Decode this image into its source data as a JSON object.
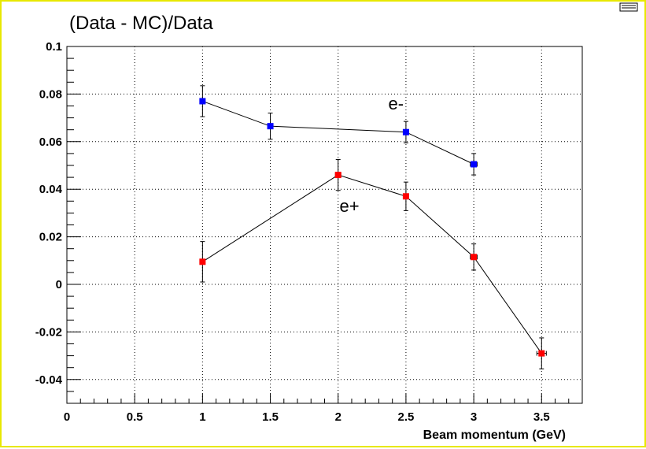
{
  "chart_data": {
    "type": "scatter",
    "title": "(Data - MC)/Data",
    "xlabel": "Beam momentum (GeV)",
    "ylabel": "",
    "xlim": [
      0,
      3.8
    ],
    "ylim": [
      -0.05,
      0.1
    ],
    "x_ticks": [
      0,
      0.5,
      1,
      1.5,
      2,
      2.5,
      3,
      3.5
    ],
    "x_tick_labels": [
      "0",
      "0.5",
      "1",
      "1.5",
      "2",
      "2.5",
      "3",
      "3.5"
    ],
    "y_ticks": [
      -0.04,
      -0.02,
      0,
      0.02,
      0.04,
      0.06,
      0.08,
      0.1
    ],
    "y_tick_labels": [
      "-0.04",
      "-0.02",
      "0",
      "0.02",
      "0.04",
      "0.06",
      "0.08",
      "0.1"
    ],
    "grid": true,
    "series": [
      {
        "color": "#0000ff",
        "points": [
          {
            "x": 1.0,
            "y": 0.077,
            "yerr": 0.0065,
            "xerr": 0.0
          },
          {
            "x": 1.5,
            "y": 0.0665,
            "yerr": 0.0055,
            "xerr": 0.0
          },
          {
            "x": 2.5,
            "y": 0.064,
            "yerr": 0.0045,
            "xerr": 0.015
          },
          {
            "x": 3.0,
            "y": 0.0505,
            "yerr": 0.0045,
            "xerr": 0.025
          }
        ]
      },
      {
        "color": "#ff0000",
        "points": [
          {
            "x": 1.0,
            "y": 0.0095,
            "yerr": 0.0085,
            "xerr": 0.0
          },
          {
            "x": 2.0,
            "y": 0.046,
            "yerr": 0.0065,
            "xerr": 0.02
          },
          {
            "x": 2.5,
            "y": 0.037,
            "yerr": 0.006,
            "xerr": 0.015
          },
          {
            "x": 3.0,
            "y": 0.0115,
            "yerr": 0.0055,
            "xerr": 0.025
          },
          {
            "x": 3.5,
            "y": -0.029,
            "yerr": 0.0065,
            "xerr": 0.035
          }
        ]
      }
    ],
    "annotations": [
      {
        "text": "e-",
        "x": 2.37,
        "y": 0.0735
      },
      {
        "text": "e+",
        "x": 2.01,
        "y": 0.0305
      }
    ]
  }
}
